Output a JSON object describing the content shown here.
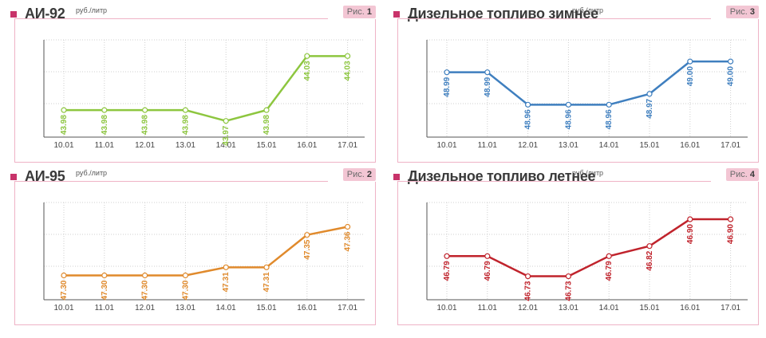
{
  "colors": {
    "accent": "#c8336a",
    "fig_bg": "#f3c6d4",
    "frame": "#efb3c6",
    "axis": "#555555",
    "grid": "#cfcfcf"
  },
  "chart_data": [
    {
      "type": "line",
      "title": "АИ-92",
      "unit": "руб./литр",
      "fig_label": "Рис.",
      "fig_num": "1",
      "color": "#8dc63f",
      "categories": [
        "10.01",
        "11.01",
        "12.01",
        "13.01",
        "14.01",
        "15.01",
        "16.01",
        "17.01"
      ],
      "values": [
        43.98,
        43.98,
        43.98,
        43.98,
        43.97,
        43.98,
        44.03,
        44.03
      ],
      "labels": [
        "43.98",
        "43.98",
        "43.98",
        "43.98",
        "43.97",
        "43.98",
        "44.03",
        "44.03"
      ],
      "grid": true
    },
    {
      "type": "line",
      "title": "Дизельное топливо зимнее",
      "unit": "руб./литр",
      "fig_label": "Рис.",
      "fig_num": "3",
      "color": "#3f7fbf",
      "categories": [
        "10.01",
        "11.01",
        "12.01",
        "13.01",
        "14.01",
        "15.01",
        "16.01",
        "17.01"
      ],
      "values": [
        48.99,
        48.99,
        48.96,
        48.96,
        48.96,
        48.97,
        49.0,
        49.0
      ],
      "labels": [
        "48.99",
        "48.99",
        "48.96",
        "48.96",
        "48.96",
        "48.97",
        "49.00",
        "49.00"
      ],
      "grid": true
    },
    {
      "type": "line",
      "title": "АИ-95",
      "unit": "руб./литр",
      "fig_label": "Рис.",
      "fig_num": "2",
      "color": "#e08a2c",
      "categories": [
        "10.01",
        "11.01",
        "12.01",
        "13.01",
        "14.01",
        "15.01",
        "16.01",
        "17.01"
      ],
      "values": [
        47.3,
        47.3,
        47.3,
        47.3,
        47.31,
        47.31,
        47.35,
        47.36
      ],
      "labels": [
        "47.30",
        "47.30",
        "47.30",
        "47.30",
        "47.31",
        "47.31",
        "47.35",
        "47.36"
      ],
      "grid": true
    },
    {
      "type": "line",
      "title": "Дизельное топливо летнее",
      "unit": "руб./литр",
      "fig_label": "Рис.",
      "fig_num": "4",
      "color": "#c0232c",
      "categories": [
        "10.01",
        "11.01",
        "12.01",
        "13.01",
        "14.01",
        "15.01",
        "16.01",
        "17.01"
      ],
      "values": [
        46.79,
        46.79,
        46.73,
        46.73,
        46.79,
        46.82,
        46.9,
        46.9
      ],
      "labels": [
        "46.79",
        "46.79",
        "46.73",
        "46.73",
        "46.79",
        "46.82",
        "46.90",
        "46.90"
      ],
      "grid": true
    }
  ]
}
